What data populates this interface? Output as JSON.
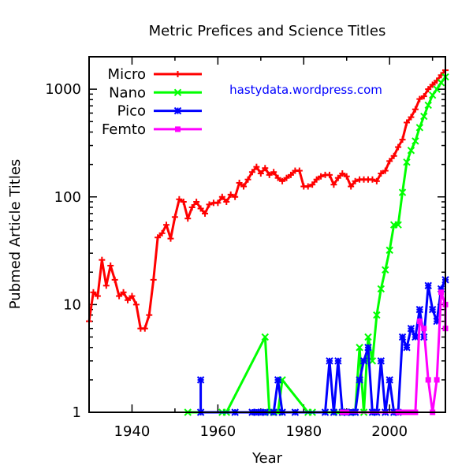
{
  "chart_data": {
    "type": "line",
    "title": "Metric Prefices and Science Titles",
    "annotation": "hastydata.wordpress.com",
    "xlabel": "Year",
    "ylabel": "Pubmed Article Titles",
    "xlim": [
      1930,
      2013
    ],
    "ylim": [
      1,
      2000
    ],
    "yscale": "log",
    "grid": false,
    "legend_position": "top-left",
    "x_ticks": [
      1940,
      1960,
      1980,
      2000
    ],
    "y_ticks": [
      1,
      10,
      100,
      1000
    ],
    "series": [
      {
        "name": "Micro",
        "color": "#ff0000",
        "marker": "plus",
        "points": [
          [
            1930,
            7
          ],
          [
            1931,
            13
          ],
          [
            1932,
            12
          ],
          [
            1933,
            26
          ],
          [
            1934,
            15
          ],
          [
            1935,
            23
          ],
          [
            1936,
            17
          ],
          [
            1937,
            12
          ],
          [
            1938,
            13
          ],
          [
            1939,
            11
          ],
          [
            1940,
            12
          ],
          [
            1941,
            10
          ],
          [
            1942,
            6
          ],
          [
            1943,
            6
          ],
          [
            1944,
            8
          ],
          [
            1945,
            17
          ],
          [
            1946,
            42
          ],
          [
            1947,
            46
          ],
          [
            1948,
            55
          ],
          [
            1949,
            41
          ],
          [
            1950,
            65
          ],
          [
            1951,
            95
          ],
          [
            1952,
            90
          ],
          [
            1953,
            63
          ],
          [
            1954,
            80
          ],
          [
            1955,
            90
          ],
          [
            1956,
            78
          ],
          [
            1957,
            70
          ],
          [
            1958,
            85
          ],
          [
            1959,
            88
          ],
          [
            1960,
            88
          ],
          [
            1961,
            100
          ],
          [
            1962,
            90
          ],
          [
            1963,
            105
          ],
          [
            1964,
            100
          ],
          [
            1965,
            135
          ],
          [
            1966,
            125
          ],
          [
            1967,
            145
          ],
          [
            1968,
            170
          ],
          [
            1969,
            190
          ],
          [
            1970,
            165
          ],
          [
            1971,
            185
          ],
          [
            1972,
            160
          ],
          [
            1973,
            170
          ],
          [
            1974,
            150
          ],
          [
            1975,
            140
          ],
          [
            1976,
            150
          ],
          [
            1977,
            160
          ],
          [
            1978,
            175
          ],
          [
            1979,
            175
          ],
          [
            1980,
            125
          ],
          [
            1981,
            125
          ],
          [
            1982,
            130
          ],
          [
            1983,
            145
          ],
          [
            1984,
            155
          ],
          [
            1985,
            160
          ],
          [
            1986,
            160
          ],
          [
            1987,
            130
          ],
          [
            1988,
            150
          ],
          [
            1989,
            165
          ],
          [
            1990,
            155
          ],
          [
            1991,
            125
          ],
          [
            1992,
            140
          ],
          [
            1993,
            145
          ],
          [
            1994,
            145
          ],
          [
            1995,
            145
          ],
          [
            1996,
            145
          ],
          [
            1997,
            140
          ],
          [
            1998,
            165
          ],
          [
            1999,
            175
          ],
          [
            2000,
            215
          ],
          [
            2001,
            240
          ],
          [
            2002,
            290
          ],
          [
            2003,
            340
          ],
          [
            2004,
            490
          ],
          [
            2005,
            550
          ],
          [
            2006,
            650
          ],
          [
            2007,
            810
          ],
          [
            2008,
            860
          ],
          [
            2009,
            1000
          ],
          [
            2010,
            1100
          ],
          [
            2011,
            1200
          ],
          [
            2012,
            1350
          ],
          [
            2013,
            1500
          ]
        ]
      },
      {
        "name": "Nano",
        "color": "#00ff00",
        "marker": "cross",
        "points": [
          [
            1953,
            1
          ],
          [
            1961,
            1
          ],
          [
            1962,
            1
          ],
          [
            1971,
            5
          ],
          [
            1972,
            1
          ],
          [
            1974,
            1
          ],
          [
            1975,
            2
          ],
          [
            1981,
            1
          ],
          [
            1982,
            1
          ],
          [
            1988,
            1
          ],
          [
            1989,
            1
          ],
          [
            1990,
            1
          ],
          [
            1991,
            1
          ],
          [
            1992,
            1
          ],
          [
            1993,
            4
          ],
          [
            1994,
            1
          ],
          [
            1995,
            5
          ],
          [
            1996,
            3
          ],
          [
            1997,
            8
          ],
          [
            1998,
            14
          ],
          [
            1999,
            21
          ],
          [
            2000,
            32
          ],
          [
            2001,
            55
          ],
          [
            2002,
            55
          ],
          [
            2003,
            110
          ],
          [
            2004,
            210
          ],
          [
            2005,
            270
          ],
          [
            2006,
            330
          ],
          [
            2007,
            440
          ],
          [
            2008,
            560
          ],
          [
            2009,
            710
          ],
          [
            2010,
            880
          ],
          [
            2011,
            1000
          ],
          [
            2012,
            1150
          ],
          [
            2013,
            1300
          ]
        ]
      },
      {
        "name": "Pico",
        "color": "#0000ff",
        "marker": "star",
        "points": [
          [
            1956,
            2
          ],
          [
            1956,
            1
          ],
          [
            1964,
            1
          ],
          [
            1968,
            1
          ],
          [
            1969,
            1
          ],
          [
            1970,
            1
          ],
          [
            1971,
            1
          ],
          [
            1973,
            1
          ],
          [
            1974,
            2
          ],
          [
            1975,
            1
          ],
          [
            1978,
            1
          ],
          [
            1985,
            1
          ],
          [
            1986,
            3
          ],
          [
            1987,
            1
          ],
          [
            1988,
            3
          ],
          [
            1989,
            1
          ],
          [
            1990,
            1
          ],
          [
            1991,
            1
          ],
          [
            1992,
            1
          ],
          [
            1993,
            2
          ],
          [
            1994,
            3
          ],
          [
            1995,
            4
          ],
          [
            1996,
            1
          ],
          [
            1997,
            1
          ],
          [
            1998,
            3
          ],
          [
            1999,
            1
          ],
          [
            2000,
            2
          ],
          [
            2001,
            1
          ],
          [
            2002,
            1
          ],
          [
            2003,
            5
          ],
          [
            2004,
            4
          ],
          [
            2005,
            6
          ],
          [
            2006,
            5
          ],
          [
            2007,
            9
          ],
          [
            2008,
            5
          ],
          [
            2009,
            15
          ],
          [
            2010,
            9
          ],
          [
            2011,
            7
          ],
          [
            2012,
            14
          ],
          [
            2013,
            17
          ]
        ]
      },
      {
        "name": "Femto",
        "color": "#ff00ff",
        "marker": "square",
        "points": [
          [
            1989,
            1
          ],
          [
            1990,
            1
          ],
          [
            2002,
            1
          ],
          [
            2003,
            1
          ],
          [
            2004,
            1
          ],
          [
            2005,
            1
          ],
          [
            2006,
            1
          ],
          [
            2007,
            7
          ],
          [
            2008,
            6
          ],
          [
            2009,
            2
          ],
          [
            2010,
            1
          ],
          [
            2011,
            2
          ],
          [
            2012,
            13
          ],
          [
            2013,
            10
          ],
          [
            2014,
            6
          ]
        ]
      }
    ]
  }
}
